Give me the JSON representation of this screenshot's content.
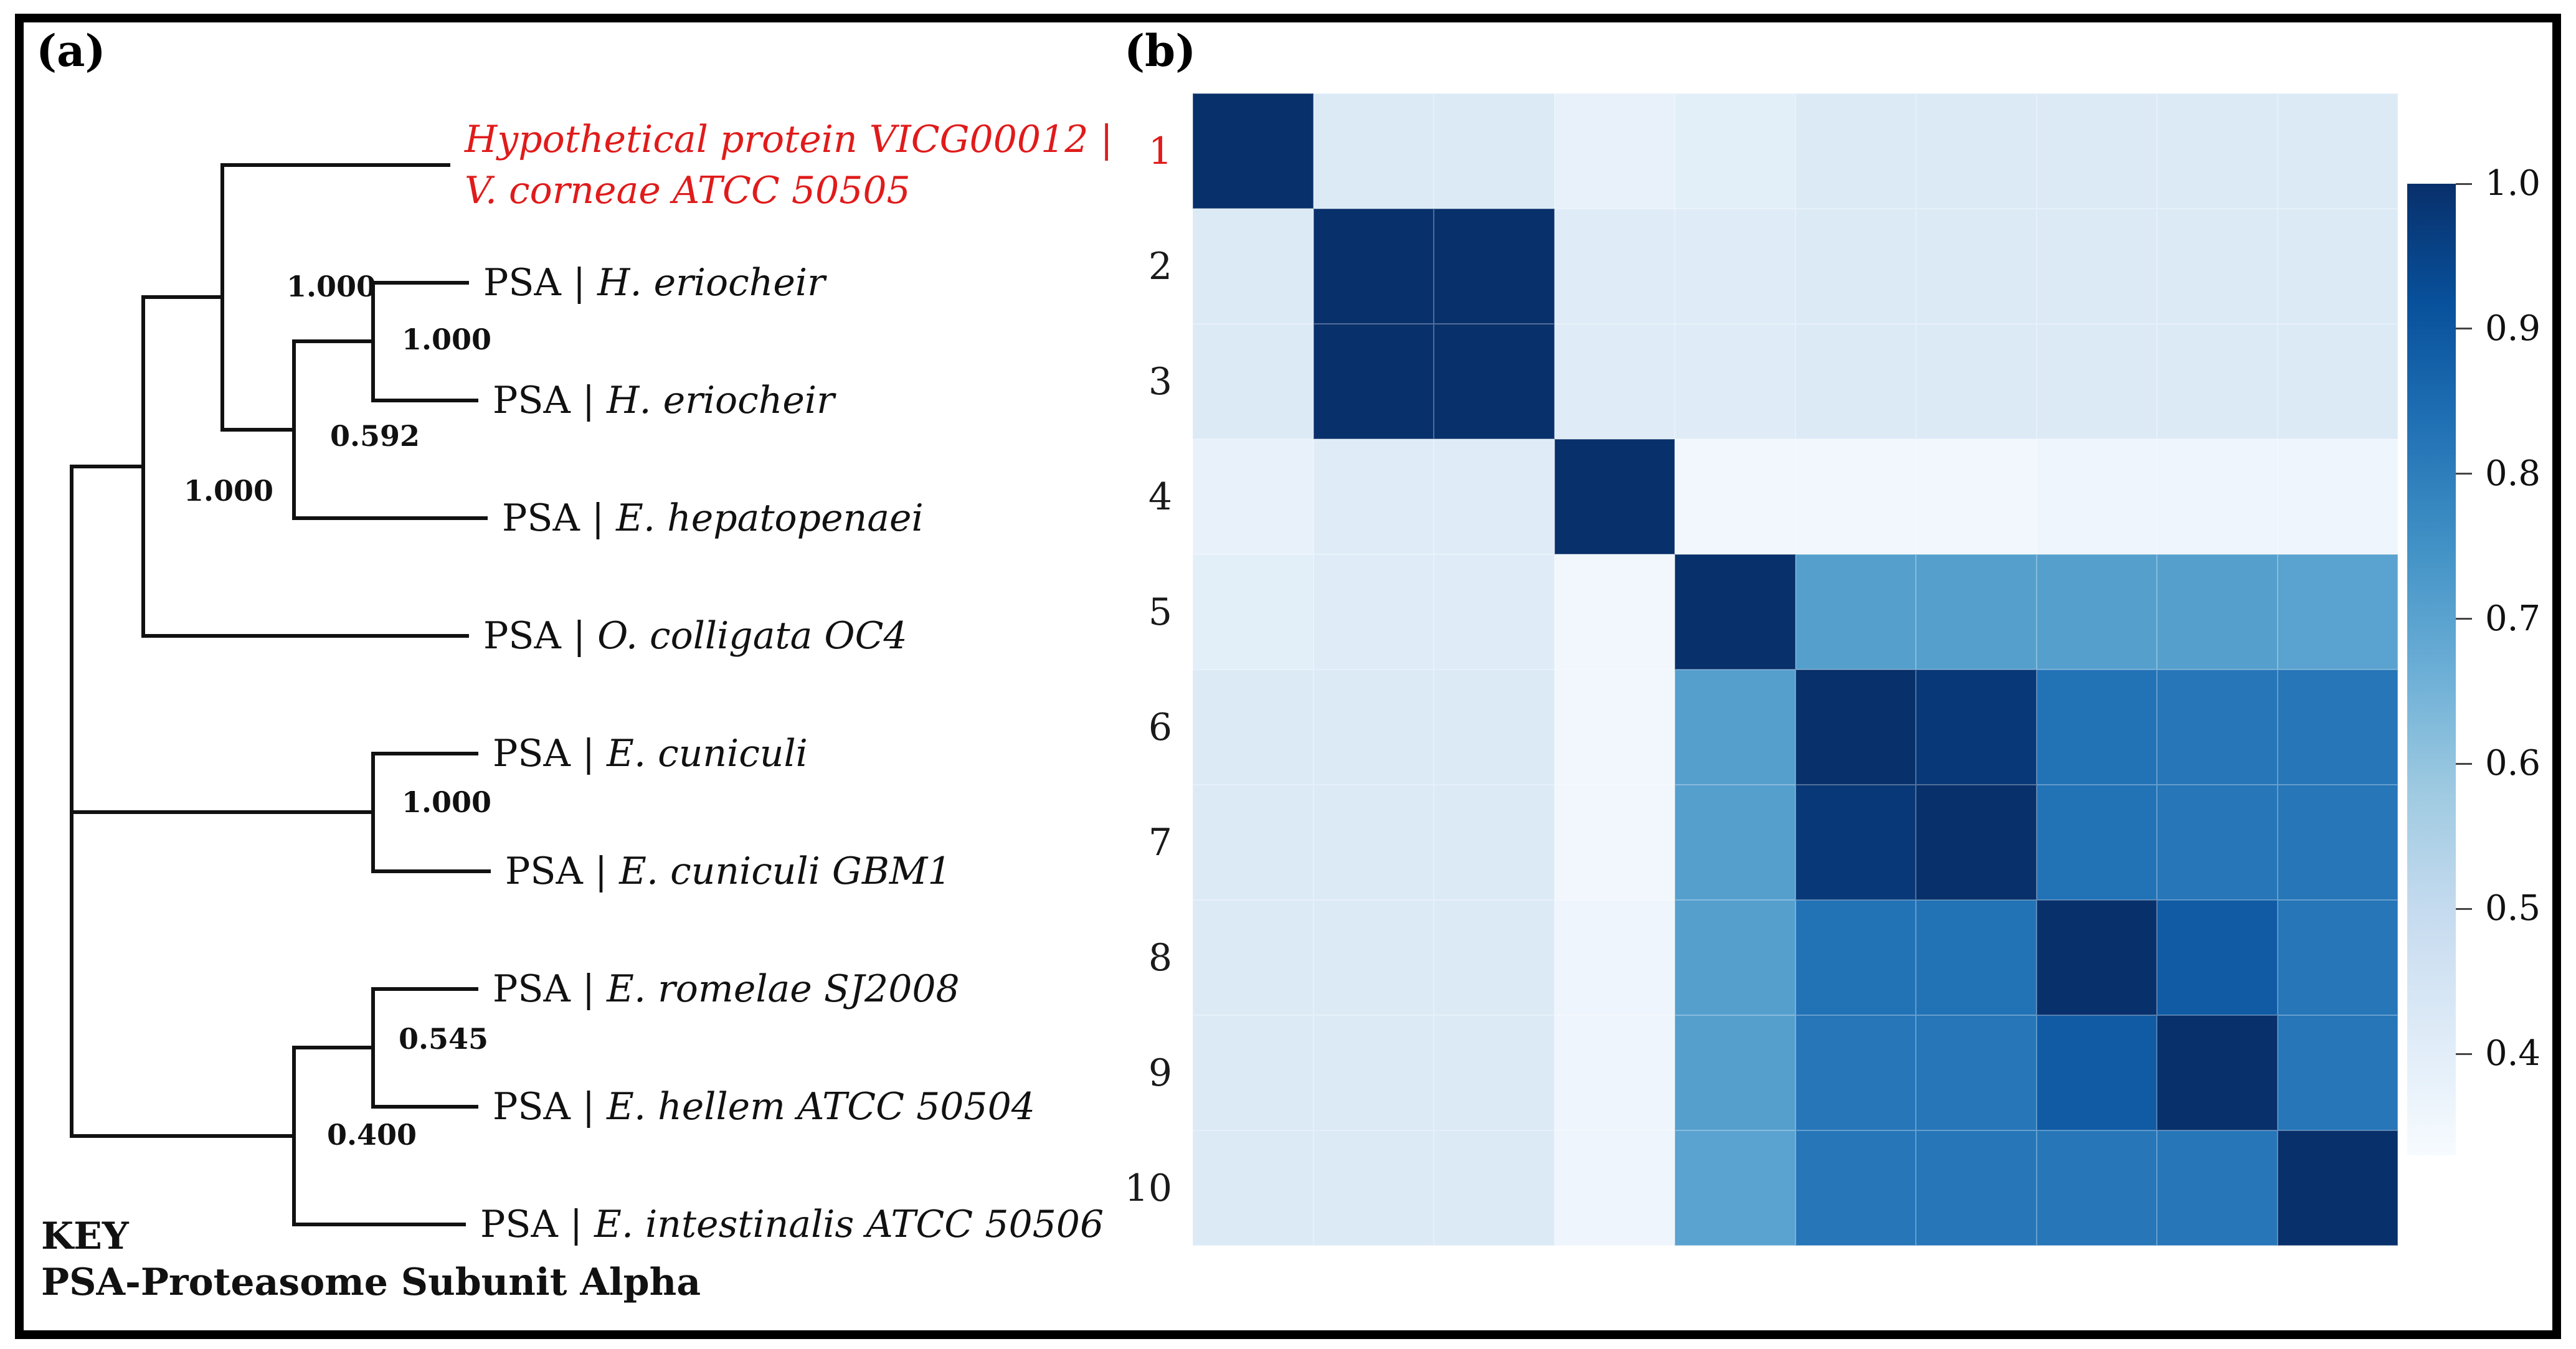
{
  "panels": {
    "a": {
      "label": "(a)",
      "key_title": "KEY",
      "key_definition": "PSA-Proteasome Subunit Alpha",
      "taxa": [
        {
          "row": "1",
          "prefix": "",
          "name": "Hypothetical protein VICG00012 | V. corneae ATCC 50505",
          "name_line1": "Hypothetical protein VICG00012 |",
          "name_line2": "V. corneae ATCC 50505",
          "highlighted": true
        },
        {
          "row": "2",
          "prefix": "PSA | ",
          "name": "H. eriocheir"
        },
        {
          "row": "3",
          "prefix": "PSA | ",
          "name": "H. eriocheir"
        },
        {
          "row": "4",
          "prefix": "PSA | ",
          "name": "E. hepatopenaei"
        },
        {
          "row": "5",
          "prefix": "PSA | ",
          "name": "O. colligata OC4"
        },
        {
          "row": "6",
          "prefix": "PSA | ",
          "name": "E. cuniculi"
        },
        {
          "row": "7",
          "prefix": "PSA | ",
          "name": "E. cuniculi GBM1"
        },
        {
          "row": "8",
          "prefix": "PSA | ",
          "name": "E. romelae SJ2008"
        },
        {
          "row": "9",
          "prefix": "PSA | ",
          "name": "E. hellem ATCC 50504"
        },
        {
          "row": "10",
          "prefix": "PSA | ",
          "name": "E. intestinalis ATCC 50506"
        }
      ],
      "supports": {
        "n1": "1.000",
        "n2": "1.000",
        "n3": "0.592",
        "n4": "1.000",
        "n5": "1.000",
        "n6": "0.400",
        "n7": "0.545"
      },
      "tree_newick": "(((1,((2,3)1.000,4)0.592)1.000,5)1.000,(6,7)1.000,((8,9)0.545,10)0.400);"
    },
    "b": {
      "label": "(b)",
      "highlighted_row": "1"
    }
  },
  "colors": {
    "highlight_red": "#e01b1b",
    "text": "#111111",
    "tree_line": "#111111",
    "heatmap_max": "#08306b",
    "heatmap_min": "#f7fbff",
    "border": "#000000"
  },
  "chart_data": {
    "type": "heatmap",
    "title": "",
    "xlabel": "",
    "ylabel": "",
    "rows": [
      "1",
      "2",
      "3",
      "4",
      "5",
      "6",
      "7",
      "8",
      "9",
      "10"
    ],
    "columns": [
      "1",
      "2",
      "3",
      "4",
      "5",
      "6",
      "7",
      "8",
      "9",
      "10"
    ],
    "matrix": [
      [
        1.0,
        0.42,
        0.42,
        0.38,
        0.4,
        0.42,
        0.42,
        0.42,
        0.42,
        0.42
      ],
      [
        0.42,
        1.0,
        1.0,
        0.41,
        0.41,
        0.42,
        0.42,
        0.42,
        0.42,
        0.42
      ],
      [
        0.42,
        1.0,
        1.0,
        0.41,
        0.41,
        0.42,
        0.42,
        0.42,
        0.42,
        0.42
      ],
      [
        0.38,
        0.41,
        0.41,
        1.0,
        0.35,
        0.35,
        0.35,
        0.36,
        0.36,
        0.36
      ],
      [
        0.4,
        0.41,
        0.41,
        0.35,
        1.0,
        0.71,
        0.71,
        0.71,
        0.71,
        0.7
      ],
      [
        0.42,
        0.42,
        0.42,
        0.35,
        0.71,
        1.0,
        0.98,
        0.83,
        0.82,
        0.82
      ],
      [
        0.42,
        0.42,
        0.42,
        0.35,
        0.71,
        0.98,
        1.0,
        0.83,
        0.82,
        0.82
      ],
      [
        0.42,
        0.42,
        0.42,
        0.36,
        0.71,
        0.83,
        0.83,
        1.0,
        0.89,
        0.82
      ],
      [
        0.42,
        0.42,
        0.42,
        0.36,
        0.71,
        0.82,
        0.82,
        0.89,
        1.0,
        0.82
      ],
      [
        0.42,
        0.42,
        0.42,
        0.36,
        0.7,
        0.82,
        0.82,
        0.82,
        0.82,
        1.0
      ]
    ],
    "colormap": "Blues",
    "vmin": 0.33,
    "vmax": 1.0,
    "colorbar_ticks": [
      1.0,
      0.9,
      0.8,
      0.7,
      0.6,
      0.5,
      0.4
    ],
    "legend_position": "right",
    "grid": false
  }
}
